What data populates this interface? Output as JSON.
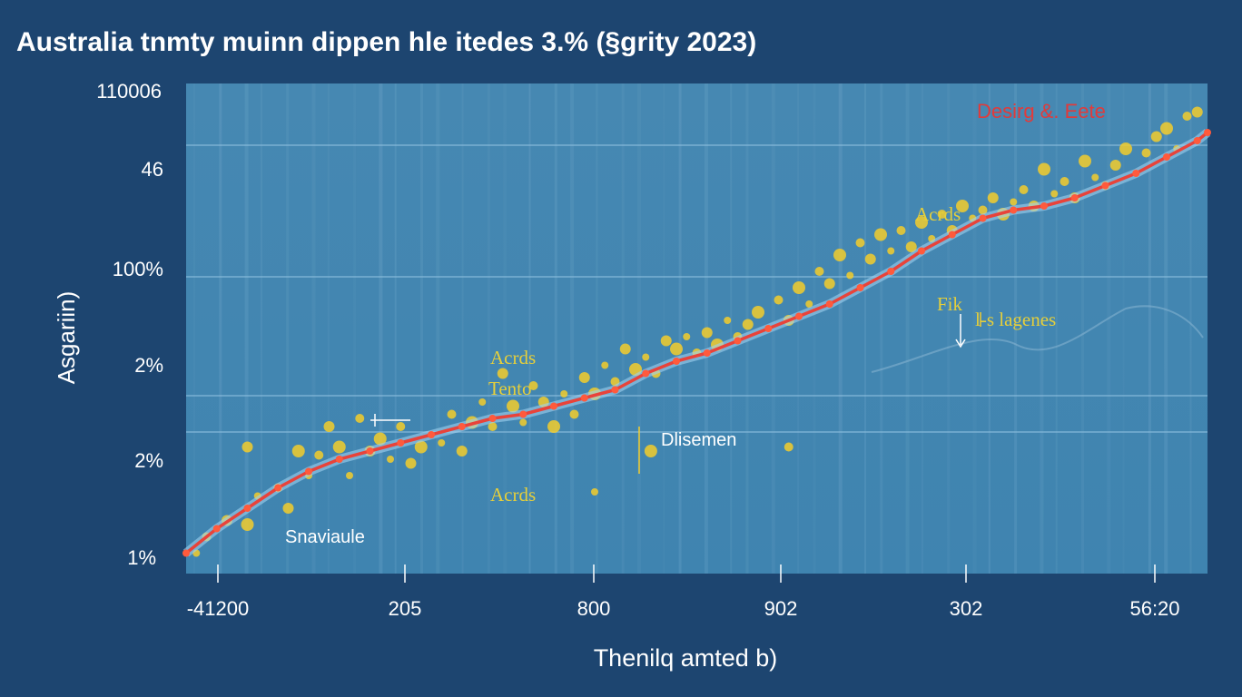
{
  "chart_data": {
    "type": "line",
    "title": "Australia tnmty muinn dippen hle itedes 3.% (§grity 2023)",
    "xlabel": "Thenilq amted b)",
    "ylabel": "Asgariin)",
    "x_tick_labels": [
      "-41200",
      "205",
      "800",
      "902",
      "302",
      "56:20"
    ],
    "y_tick_labels": [
      "110006",
      "46",
      "100%",
      "2%",
      "2%",
      "1%"
    ],
    "series": [
      {
        "name": "trend",
        "color": "#e8433a",
        "x": [
          0,
          3,
          6,
          9,
          12,
          15,
          18,
          21,
          24,
          27,
          30,
          33,
          36,
          39,
          42,
          45,
          48,
          51,
          54,
          57,
          60,
          63,
          66,
          69,
          72,
          75,
          78,
          81,
          84,
          87,
          90,
          93,
          96,
          99,
          100
        ],
        "y": [
          5,
          11,
          16,
          21,
          25,
          28,
          30,
          32,
          34,
          36,
          38,
          39,
          41,
          43,
          45,
          49,
          52,
          54,
          57,
          60,
          63,
          66,
          70,
          74,
          79,
          83,
          87,
          89,
          90,
          92,
          95,
          98,
          102,
          106,
          108
        ]
      },
      {
        "name": "scatter",
        "color": "#f3cc2c",
        "points": [
          [
            1,
            5
          ],
          [
            2,
            9
          ],
          [
            4,
            13
          ],
          [
            6,
            12
          ],
          [
            7,
            19
          ],
          [
            9,
            21
          ],
          [
            10,
            16
          ],
          [
            11,
            30
          ],
          [
            12,
            24
          ],
          [
            13,
            29
          ],
          [
            14,
            36
          ],
          [
            15,
            31
          ],
          [
            16,
            24
          ],
          [
            17,
            38
          ],
          [
            18,
            30
          ],
          [
            19,
            33
          ],
          [
            20,
            28
          ],
          [
            21,
            36
          ],
          [
            22,
            27
          ],
          [
            23,
            31
          ],
          [
            25,
            32
          ],
          [
            26,
            39
          ],
          [
            27,
            30
          ],
          [
            28,
            37
          ],
          [
            29,
            42
          ],
          [
            30,
            36
          ],
          [
            31,
            49
          ],
          [
            32,
            41
          ],
          [
            33,
            37
          ],
          [
            34,
            46
          ],
          [
            35,
            42
          ],
          [
            36,
            36
          ],
          [
            37,
            44
          ],
          [
            38,
            39
          ],
          [
            39,
            48
          ],
          [
            40,
            44
          ],
          [
            41,
            51
          ],
          [
            42,
            47
          ],
          [
            43,
            55
          ],
          [
            44,
            50
          ],
          [
            45,
            53
          ],
          [
            46,
            49
          ],
          [
            47,
            57
          ],
          [
            48,
            55
          ],
          [
            49,
            58
          ],
          [
            50,
            54
          ],
          [
            51,
            59
          ],
          [
            52,
            56
          ],
          [
            53,
            62
          ],
          [
            54,
            58
          ],
          [
            55,
            61
          ],
          [
            56,
            64
          ],
          [
            57,
            60
          ],
          [
            58,
            67
          ],
          [
            59,
            62
          ],
          [
            60,
            70
          ],
          [
            61,
            66
          ],
          [
            62,
            74
          ],
          [
            63,
            71
          ],
          [
            64,
            78
          ],
          [
            65,
            73
          ],
          [
            66,
            81
          ],
          [
            67,
            77
          ],
          [
            68,
            83
          ],
          [
            69,
            79
          ],
          [
            70,
            84
          ],
          [
            71,
            80
          ],
          [
            72,
            86
          ],
          [
            73,
            82
          ],
          [
            74,
            88
          ],
          [
            75,
            84
          ],
          [
            76,
            90
          ],
          [
            77,
            87
          ],
          [
            78,
            89
          ],
          [
            79,
            92
          ],
          [
            80,
            88
          ],
          [
            81,
            91
          ],
          [
            82,
            94
          ],
          [
            83,
            90
          ],
          [
            84,
            99
          ],
          [
            85,
            93
          ],
          [
            86,
            96
          ],
          [
            87,
            92
          ],
          [
            88,
            101
          ],
          [
            89,
            97
          ],
          [
            90,
            95
          ],
          [
            91,
            100
          ],
          [
            92,
            104
          ],
          [
            93,
            98
          ],
          [
            94,
            103
          ],
          [
            95,
            107
          ],
          [
            96,
            109
          ],
          [
            97,
            104
          ],
          [
            98,
            112
          ],
          [
            99,
            113
          ],
          [
            45.5,
            30
          ],
          [
            40,
            20
          ],
          [
            59,
            31
          ],
          [
            6,
            31
          ]
        ]
      }
    ],
    "annotations": [
      {
        "text": "Desirg &. Eete",
        "color": "red"
      },
      {
        "text": "Acrds",
        "color": "yellow"
      },
      {
        "text": "Acrds",
        "color": "yellow"
      },
      {
        "text": "Tento",
        "color": "yellow"
      },
      {
        "text": "Acrds",
        "color": "yellow"
      },
      {
        "text": "Fik",
        "color": "yellow"
      },
      {
        "text": "l-s lagenes",
        "color": "yellow"
      },
      {
        "text": "Dlisemen",
        "color": "white"
      },
      {
        "text": "Snaviaule",
        "color": "white"
      }
    ],
    "xlim": [
      0,
      100
    ],
    "ylim": [
      0,
      120
    ],
    "grid": true,
    "legend": "none"
  }
}
